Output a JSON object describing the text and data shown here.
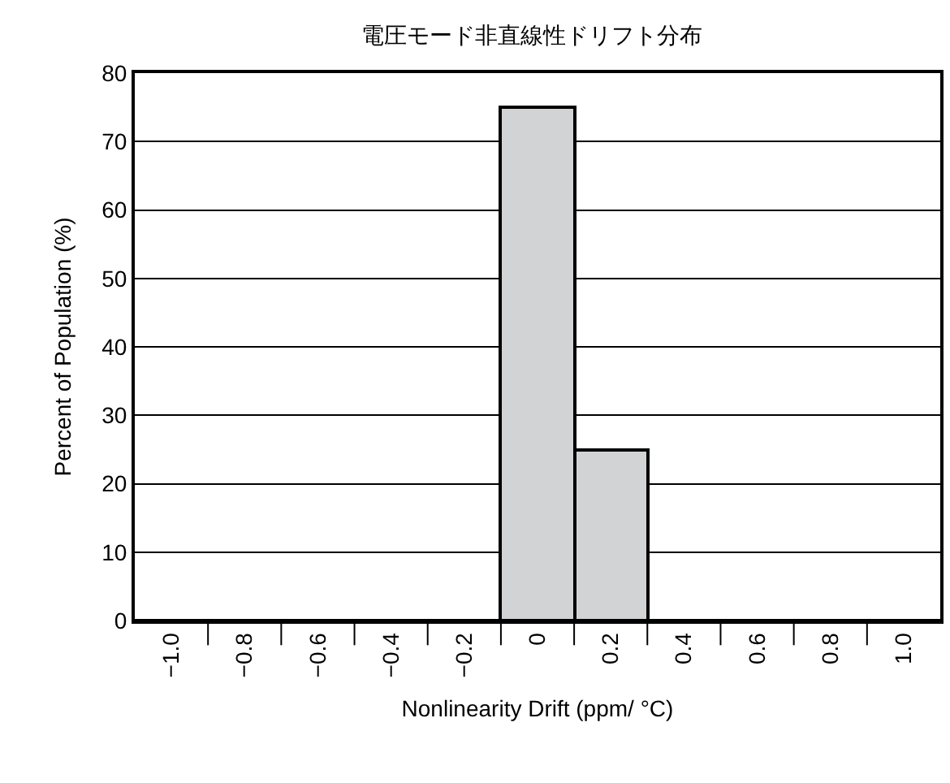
{
  "chart_data": {
    "type": "histogram",
    "title": "電圧モード非直線性ドリフト分布",
    "xlabel": "Nonlinearity Drift (ppm/ °C)",
    "ylabel": "Percent of Population (%)",
    "bins": [
      -1.1,
      -0.9,
      -0.7,
      -0.5,
      -0.3,
      -0.1,
      0.1,
      0.3,
      0.5,
      0.7,
      0.9,
      1.1
    ],
    "values": [
      0,
      0,
      0,
      0,
      0,
      75,
      25,
      0,
      0,
      0,
      0
    ],
    "color": "#d1d3d4",
    "xlim": [
      -1.1,
      1.1
    ],
    "xticks": [
      {
        "value": -1.0,
        "label": "−1.0"
      },
      {
        "value": -0.8,
        "label": "−0.8"
      },
      {
        "value": -0.6,
        "label": "−0.6"
      },
      {
        "value": -0.4,
        "label": "−0.4"
      },
      {
        "value": -0.2,
        "label": "−0.2"
      },
      {
        "value": 0,
        "label": "0"
      },
      {
        "value": 0.2,
        "label": "0.2"
      },
      {
        "value": 0.4,
        "label": "0.4"
      },
      {
        "value": 0.6,
        "label": "0.6"
      },
      {
        "value": 0.8,
        "label": "0.8"
      },
      {
        "value": 1.0,
        "label": "1.0"
      },
      {
        "value": -0.9,
        "label": null
      },
      {
        "value": -0.7,
        "label": null
      },
      {
        "value": -0.5,
        "label": null
      },
      {
        "value": -0.3,
        "label": null
      },
      {
        "value": -0.1,
        "label": null
      },
      {
        "value": 0.1,
        "label": null
      },
      {
        "value": 0.3,
        "label": null
      },
      {
        "value": 0.5,
        "label": null
      },
      {
        "value": 0.7,
        "label": null
      },
      {
        "value": 0.9,
        "label": null
      }
    ],
    "ylim": [
      0,
      80
    ],
    "yticks": [
      0,
      10,
      20,
      30,
      40,
      50,
      60,
      70,
      80
    ],
    "grid": "y"
  }
}
